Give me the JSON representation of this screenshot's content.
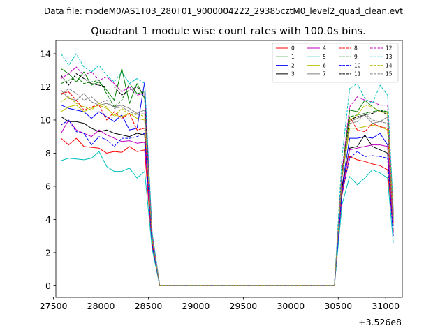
{
  "figure": {
    "suptitle": "Data file: modeM0/AS1T03_280T01_9000004222_29385cztM0_level2_quad_clean.evt"
  },
  "chart_data": {
    "type": "line",
    "title": "Quadrant 1 module wise count rates with 100.0s bins.",
    "xlabel": "",
    "ylabel": "",
    "x_offset_label": "+3.526e8",
    "xlim": [
      27525,
      31175
    ],
    "ylim": [
      -0.7,
      14.8
    ],
    "xticks": [
      27500,
      28000,
      28500,
      29000,
      29500,
      30000,
      30500,
      31000
    ],
    "xtick_labels": [
      "27500",
      "28000",
      "28500",
      "29000",
      "29500",
      "30000",
      "30500",
      "31000"
    ],
    "yticks": [
      0,
      2,
      4,
      6,
      8,
      10,
      12,
      14
    ],
    "ytick_labels": [
      "0",
      "2",
      "4",
      "6",
      "8",
      "10",
      "12",
      "14"
    ],
    "grid": false,
    "legend_placement": "top-right",
    "legend_columns": 4,
    "x": [
      27580,
      27660,
      27740,
      27820,
      27900,
      27980,
      28060,
      28140,
      28220,
      28300,
      28380,
      28460,
      28540,
      28620,
      28700,
      28780,
      28860,
      28940,
      29020,
      29100,
      29180,
      29260,
      29340,
      29420,
      29500,
      29580,
      29660,
      29740,
      29820,
      29900,
      29980,
      30060,
      30140,
      30220,
      30300,
      30380,
      30460,
      30540,
      30620,
      30700,
      30780,
      30860,
      30940,
      31020,
      31080
    ],
    "series": [
      {
        "name": "0",
        "color": "#ff0000",
        "dash": "solid",
        "values": [
          8.9,
          8.5,
          8.9,
          8.4,
          8.35,
          8.3,
          8.0,
          8.1,
          8.05,
          8.4,
          8.1,
          8.2,
          2.3,
          0,
          0,
          0,
          0,
          0,
          0,
          0,
          0,
          0,
          0,
          0,
          0,
          0,
          0,
          0,
          0,
          0,
          0,
          0,
          0,
          0,
          0,
          0,
          0,
          5.5,
          7.8,
          7.6,
          7.5,
          7.35,
          7.25,
          7.0,
          3.3
        ]
      },
      {
        "name": "1",
        "color": "#008000",
        "dash": "solid",
        "values": [
          13.1,
          12.8,
          12.3,
          12.9,
          12.1,
          12.3,
          11.8,
          11.2,
          13.1,
          11.0,
          12.2,
          11.3,
          2.8,
          0,
          0,
          0,
          0,
          0,
          0,
          0,
          0,
          0,
          0,
          0,
          0,
          0,
          0,
          0,
          0,
          0,
          0,
          0,
          0,
          0,
          0,
          0,
          0,
          6.8,
          10.6,
          10.5,
          11.2,
          10.8,
          10.5,
          10.5,
          4.3
        ]
      },
      {
        "name": "2",
        "color": "#0000ff",
        "dash": "solid",
        "values": [
          10.9,
          10.7,
          10.6,
          10.5,
          10.1,
          10.5,
          10.2,
          9.9,
          10.3,
          9.4,
          9.5,
          12.3,
          2.7,
          0,
          0,
          0,
          0,
          0,
          0,
          0,
          0,
          0,
          0,
          0,
          0,
          0,
          0,
          0,
          0,
          0,
          0,
          0,
          0,
          0,
          0,
          0,
          0,
          6.0,
          8.9,
          8.9,
          9.0,
          8.9,
          9.2,
          8.5,
          3.6
        ]
      },
      {
        "name": "3",
        "color": "#000000",
        "dash": "solid",
        "values": [
          10.2,
          9.9,
          9.9,
          9.8,
          9.5,
          9.3,
          9.4,
          9.2,
          9.1,
          9.0,
          9.2,
          9.1,
          2.5,
          0,
          0,
          0,
          0,
          0,
          0,
          0,
          0,
          0,
          0,
          0,
          0,
          0,
          0,
          0,
          0,
          0,
          0,
          0,
          0,
          0,
          0,
          0,
          0,
          5.9,
          8.3,
          8.4,
          9.1,
          8.4,
          8.2,
          8.0,
          3.2
        ]
      },
      {
        "name": "4",
        "color": "#bf00bf",
        "dash": "solid",
        "values": [
          9.2,
          10.0,
          9.4,
          9.2,
          9.0,
          9.4,
          9.1,
          8.9,
          8.7,
          8.75,
          8.6,
          8.65,
          2.5,
          0,
          0,
          0,
          0,
          0,
          0,
          0,
          0,
          0,
          0,
          0,
          0,
          0,
          0,
          0,
          0,
          0,
          0,
          0,
          0,
          0,
          0,
          0,
          0,
          5.7,
          8.2,
          8.3,
          8.4,
          8.5,
          8.5,
          8.4,
          3.2
        ]
      },
      {
        "name": "5",
        "color": "#00bfbf",
        "dash": "solid",
        "values": [
          7.55,
          7.7,
          7.65,
          7.6,
          7.7,
          8.1,
          7.2,
          6.9,
          6.9,
          7.1,
          6.5,
          6.9,
          2.2,
          0,
          0,
          0,
          0,
          0,
          0,
          0,
          0,
          0,
          0,
          0,
          0,
          0,
          0,
          0,
          0,
          0,
          0,
          0,
          0,
          0,
          0,
          0,
          0,
          4.9,
          6.6,
          6.1,
          6.5,
          7.0,
          6.8,
          6.5,
          2.6
        ]
      },
      {
        "name": "6",
        "color": "#bfbf00",
        "dash": "solid",
        "values": [
          10.5,
          10.8,
          10.9,
          10.5,
          10.7,
          10.9,
          10.7,
          10.3,
          10.2,
          10.4,
          10.1,
          10.0,
          2.8,
          0,
          0,
          0,
          0,
          0,
          0,
          0,
          0,
          0,
          0,
          0,
          0,
          0,
          0,
          0,
          0,
          0,
          0,
          0,
          0,
          0,
          0,
          0,
          0,
          6.5,
          9.5,
          9.5,
          9.6,
          9.7,
          9.6,
          9.4,
          3.7
        ]
      },
      {
        "name": "7",
        "color": "#808080",
        "dash": "solid",
        "values": [
          11.8,
          11.3,
          11.2,
          11.6,
          11.1,
          10.9,
          11.0,
          10.8,
          10.9,
          10.7,
          10.4,
          10.6,
          2.9,
          0,
          0,
          0,
          0,
          0,
          0,
          0,
          0,
          0,
          0,
          0,
          0,
          0,
          0,
          0,
          0,
          0,
          0,
          0,
          0,
          0,
          0,
          0,
          0,
          6.6,
          9.9,
          10.1,
          10.3,
          9.8,
          9.9,
          10.2,
          4.0
        ]
      },
      {
        "name": "8",
        "color": "#ff0000",
        "dash": "dashed",
        "values": [
          11.6,
          11.7,
          11.2,
          10.6,
          10.8,
          10.9,
          10.0,
          10.5,
          10.1,
          10.4,
          9.4,
          9.5,
          2.6,
          0,
          0,
          0,
          0,
          0,
          0,
          0,
          0,
          0,
          0,
          0,
          0,
          0,
          0,
          0,
          0,
          0,
          0,
          0,
          0,
          0,
          0,
          0,
          0,
          6.7,
          10.2,
          9.4,
          9.3,
          9.8,
          9.6,
          9.5,
          3.8
        ]
      },
      {
        "name": "9",
        "color": "#008000",
        "dash": "dashed",
        "values": [
          12.2,
          12.4,
          12.6,
          12.2,
          12.3,
          12.4,
          11.6,
          10.8,
          11.2,
          12.2,
          11.6,
          11.7,
          3.0,
          0,
          0,
          0,
          0,
          0,
          0,
          0,
          0,
          0,
          0,
          0,
          0,
          0,
          0,
          0,
          0,
          0,
          0,
          0,
          0,
          0,
          0,
          0,
          0,
          6.9,
          10.2,
          10.3,
          10.4,
          10.5,
          10.6,
          10.5,
          4.2
        ]
      },
      {
        "name": "10",
        "color": "#0000ff",
        "dash": "dashed",
        "values": [
          9.7,
          10.0,
          9.3,
          9.2,
          8.5,
          9.0,
          8.8,
          8.4,
          8.9,
          8.9,
          9.0,
          9.2,
          2.5,
          0,
          0,
          0,
          0,
          0,
          0,
          0,
          0,
          0,
          0,
          0,
          0,
          0,
          0,
          0,
          0,
          0,
          0,
          0,
          0,
          0,
          0,
          0,
          0,
          5.6,
          7.7,
          8.1,
          7.8,
          7.85,
          7.8,
          7.7,
          3.0
        ]
      },
      {
        "name": "11",
        "color": "#000000",
        "dash": "dashed",
        "values": [
          12.7,
          12.1,
          12.8,
          12.5,
          12.2,
          12.1,
          12.0,
          12.0,
          11.5,
          11.8,
          12.0,
          11.5,
          3.0,
          0,
          0,
          0,
          0,
          0,
          0,
          0,
          0,
          0,
          0,
          0,
          0,
          0,
          0,
          0,
          0,
          0,
          0,
          0,
          0,
          0,
          0,
          0,
          0,
          6.9,
          10.0,
          10.2,
          10.3,
          10.4,
          10.6,
          10.3,
          4.1
        ]
      },
      {
        "name": "12",
        "color": "#bf00bf",
        "dash": "dashed",
        "values": [
          12.5,
          12.8,
          13.2,
          12.7,
          12.9,
          12.4,
          12.6,
          12.2,
          11.7,
          12.0,
          11.5,
          11.6,
          3.1,
          0,
          0,
          0,
          0,
          0,
          0,
          0,
          0,
          0,
          0,
          0,
          0,
          0,
          0,
          0,
          0,
          0,
          0,
          0,
          0,
          0,
          0,
          0,
          0,
          7.0,
          10.8,
          11.4,
          11.2,
          11.1,
          10.9,
          10.9,
          4.4
        ]
      },
      {
        "name": "13",
        "color": "#00bfbf",
        "dash": "dashed",
        "values": [
          14.0,
          13.3,
          14.0,
          13.2,
          12.9,
          13.3,
          12.7,
          12.3,
          12.9,
          12.2,
          12.5,
          12.2,
          3.2,
          0,
          0,
          0,
          0,
          0,
          0,
          0,
          0,
          0,
          0,
          0,
          0,
          0,
          0,
          0,
          0,
          0,
          0,
          0,
          0,
          0,
          0,
          0,
          0,
          7.8,
          11.9,
          12.2,
          11.3,
          11.0,
          12.1,
          11.5,
          4.6
        ]
      },
      {
        "name": "14",
        "color": "#bfbf00",
        "dash": "dashed",
        "values": [
          11.1,
          11.4,
          11.0,
          10.8,
          10.6,
          11.0,
          10.8,
          10.2,
          10.7,
          10.3,
          10.4,
          10.2,
          2.8,
          0,
          0,
          0,
          0,
          0,
          0,
          0,
          0,
          0,
          0,
          0,
          0,
          0,
          0,
          0,
          0,
          0,
          0,
          0,
          0,
          0,
          0,
          0,
          0,
          6.7,
          10.0,
          10.3,
          10.9,
          10.8,
          10.5,
          10.4,
          4.1
        ]
      },
      {
        "name": "15",
        "color": "#808080",
        "dash": "dashed",
        "values": [
          11.5,
          11.9,
          11.6,
          11.2,
          11.4,
          11.0,
          11.2,
          10.7,
          10.8,
          10.5,
          10.3,
          10.4,
          2.9,
          0,
          0,
          0,
          0,
          0,
          0,
          0,
          0,
          0,
          0,
          0,
          0,
          0,
          0,
          0,
          0,
          0,
          0,
          0,
          0,
          0,
          0,
          0,
          0,
          6.6,
          9.8,
          9.9,
          10.4,
          10.0,
          9.9,
          9.8,
          3.9
        ]
      }
    ]
  }
}
